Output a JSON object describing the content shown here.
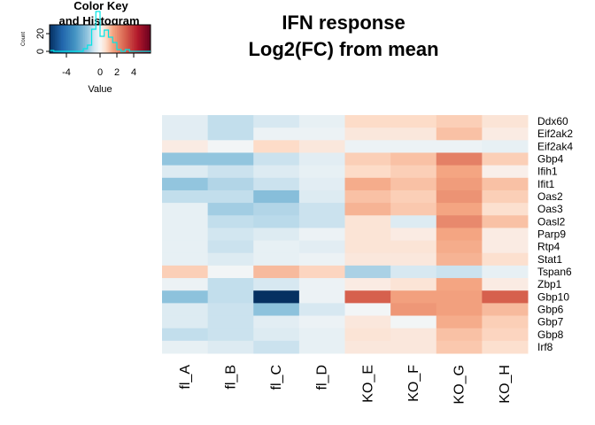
{
  "chart_data": {
    "type": "heatmap",
    "title_lines": [
      "IFN response",
      "Log2(FC) from mean"
    ],
    "columns": [
      "fl_A",
      "fl_B",
      "fl_C",
      "fl_D",
      "KO_E",
      "KO_F",
      "KO_G",
      "KO_H"
    ],
    "rows": [
      "Ddx60",
      "Eif2ak2",
      "Eif2ak4",
      "Gbp4",
      "Ifih1",
      "Ifit1",
      "Oas2",
      "Oas3",
      "Oasl2",
      "Parp9",
      "Rtp4",
      "Stat1",
      "Tspan6",
      "Zbp1",
      "Gbp10",
      "Gbp6",
      "Gbp7",
      "Gbp8",
      "Irf8"
    ],
    "values": [
      [
        -0.4,
        -0.9,
        -0.6,
        -0.3,
        0.7,
        0.7,
        0.9,
        0.5
      ],
      [
        -0.4,
        -0.9,
        -0.2,
        -0.2,
        0.4,
        0.4,
        1.1,
        0.3
      ],
      [
        0.3,
        -0.1,
        0.7,
        0.4,
        -0.2,
        -0.2,
        -0.2,
        -0.3
      ],
      [
        -1.5,
        -1.5,
        -0.8,
        -0.4,
        0.9,
        1.1,
        2.3,
        0.9
      ],
      [
        -0.5,
        -0.8,
        -0.5,
        -0.3,
        0.7,
        0.9,
        1.5,
        0.2
      ],
      [
        -1.5,
        -1.1,
        -0.8,
        -0.4,
        1.4,
        1.1,
        1.7,
        1.1
      ],
      [
        -0.9,
        -0.9,
        -1.7,
        -0.5,
        1.1,
        0.9,
        1.9,
        0.9
      ],
      [
        -0.3,
        -1.3,
        -1.1,
        -0.8,
        1.3,
        1.0,
        1.5,
        0.6
      ],
      [
        -0.3,
        -0.9,
        -1.0,
        -0.8,
        0.5,
        -0.5,
        2.1,
        1.1
      ],
      [
        -0.3,
        -0.7,
        -0.5,
        -0.2,
        0.5,
        0.3,
        1.5,
        0.3
      ],
      [
        -0.3,
        -0.8,
        -0.3,
        -0.4,
        0.5,
        0.5,
        1.4,
        0.3
      ],
      [
        -0.3,
        -0.5,
        -0.3,
        -0.2,
        0.4,
        0.4,
        1.3,
        0.6
      ],
      [
        0.9,
        -0.1,
        1.2,
        0.8,
        -1.2,
        -0.6,
        -0.8,
        -0.3
      ],
      [
        -0.2,
        -0.9,
        -0.6,
        -0.2,
        0.3,
        0.5,
        1.5,
        0.3
      ],
      [
        -1.6,
        -0.9,
        -6.0,
        -0.2,
        3.0,
        1.6,
        1.6,
        3.0
      ],
      [
        -0.5,
        -0.8,
        -1.6,
        -0.6,
        -0.1,
        1.8,
        1.6,
        1.2
      ],
      [
        -0.5,
        -0.8,
        -0.4,
        -0.2,
        0.4,
        -0.1,
        1.4,
        0.9
      ],
      [
        -0.9,
        -0.8,
        -0.5,
        -0.3,
        0.5,
        0.4,
        1.1,
        0.8
      ],
      [
        -0.3,
        -0.5,
        -0.8,
        -0.3,
        0.4,
        0.4,
        1.0,
        0.6
      ]
    ],
    "color_key": {
      "title_lines": [
        "Color Key",
        "and Histogram"
      ],
      "xlabel": "Value",
      "ylabel": "Count",
      "range": [
        -6,
        6
      ],
      "ticks": [
        -4,
        0,
        2,
        4
      ],
      "count_ticks": [
        0,
        20
      ],
      "colors": {
        "low": "#053061",
        "mid": "#f7f7f7",
        "high": "#67001f",
        "histogram": "#00e5e5"
      }
    }
  }
}
